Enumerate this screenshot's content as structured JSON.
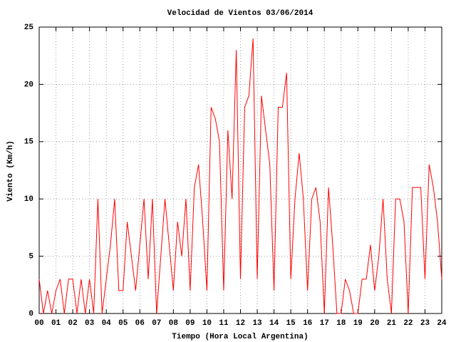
{
  "chart_data": {
    "type": "line",
    "title": "Velocidad de Vientos 03/06/2014",
    "x_label": "Tiempo (Hora Local Argentina)",
    "y_label": "Viento (Km/h)",
    "x": [
      0,
      0.25,
      0.5,
      0.75,
      1,
      1.25,
      1.5,
      1.75,
      2,
      2.25,
      2.5,
      2.75,
      3,
      3.25,
      3.5,
      3.75,
      4,
      4.25,
      4.5,
      4.75,
      5,
      5.25,
      5.5,
      5.75,
      6,
      6.25,
      6.5,
      6.75,
      7,
      7.25,
      7.5,
      7.75,
      8,
      8.25,
      8.5,
      8.75,
      9,
      9.25,
      9.5,
      9.75,
      10,
      10.25,
      10.5,
      10.75,
      11,
      11.25,
      11.5,
      11.75,
      12,
      12.25,
      12.5,
      12.75,
      13,
      13.25,
      13.5,
      13.75,
      14,
      14.25,
      14.5,
      14.75,
      15,
      15.25,
      15.5,
      15.75,
      16,
      16.25,
      16.5,
      16.75,
      17,
      17.25,
      17.5,
      17.75,
      18,
      18.25,
      18.5,
      18.75,
      19,
      19.25,
      19.5,
      19.75,
      20,
      20.25,
      20.5,
      20.75,
      21,
      21.25,
      21.5,
      21.75,
      22,
      22.25,
      22.5,
      22.75,
      23,
      23.25,
      23.5,
      23.75,
      24
    ],
    "series": [
      {
        "name": "Viento",
        "color": "#ff0000",
        "values": [
          3,
          0,
          2,
          0,
          2,
          3,
          0,
          3,
          3,
          0,
          3,
          0,
          3,
          0,
          10,
          0,
          3,
          6,
          10,
          2,
          2,
          8,
          5,
          2,
          6,
          10,
          3,
          10,
          0,
          5,
          10,
          6,
          2,
          8,
          5,
          10,
          2,
          11,
          13,
          8,
          2,
          18,
          17,
          15,
          2,
          16,
          10,
          23,
          3,
          18,
          19,
          24,
          3,
          19,
          16,
          13,
          2,
          18,
          18,
          21,
          3,
          10,
          14,
          10,
          2,
          10,
          11,
          8,
          0,
          11,
          6,
          0,
          0,
          3,
          2,
          0,
          0,
          3,
          3,
          6,
          2,
          5,
          10,
          3,
          0,
          10,
          10,
          8,
          0,
          11,
          11,
          11,
          3,
          13,
          11,
          8,
          3
        ]
      }
    ],
    "xlim": [
      0,
      24
    ],
    "xticks": [
      {
        "value": 0,
        "label": "00"
      },
      {
        "value": 1,
        "label": "01"
      },
      {
        "value": 2,
        "label": "02"
      },
      {
        "value": 3,
        "label": "03"
      },
      {
        "value": 4,
        "label": "04"
      },
      {
        "value": 5,
        "label": "05"
      },
      {
        "value": 6,
        "label": "06"
      },
      {
        "value": 7,
        "label": "07"
      },
      {
        "value": 8,
        "label": "08"
      },
      {
        "value": 9,
        "label": "09"
      },
      10,
      11,
      12,
      13,
      14,
      15,
      16,
      17,
      18,
      19,
      20,
      21,
      22,
      23,
      24
    ],
    "ylim": [
      0,
      25
    ],
    "yticks": [
      0,
      5,
      10,
      15,
      20,
      25
    ],
    "grid": true
  }
}
